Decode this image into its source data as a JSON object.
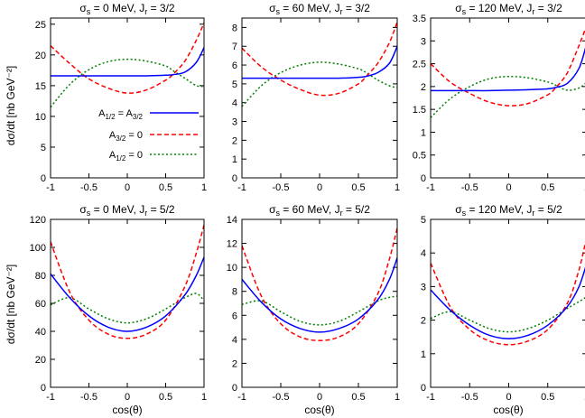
{
  "figure": {
    "ylabel": "dσ/dt [nb GeV⁻²]",
    "xlabel": "cos(θ)"
  },
  "legend": {
    "placement": "top-left panel, lower left",
    "entries": [
      "A1/2 = A3/2",
      "A3/2 = 0",
      "A1/2 = 0"
    ]
  },
  "colors": {
    "A1/2 = A3/2": "#0000ff",
    "A3/2 = 0": "#ff0000",
    "A1/2 = 0": "#008000"
  },
  "chart_data": [
    {
      "type": "line",
      "title": "σs = 0 MeV, Jr = 3/2",
      "xlim": [
        -1,
        1
      ],
      "ylim": [
        0,
        26
      ],
      "yticks": [
        0,
        5,
        10,
        15,
        20,
        25
      ],
      "x": [
        -1,
        -0.75,
        -0.5,
        -0.25,
        0,
        0.25,
        0.5,
        0.6,
        0.75,
        0.9,
        1
      ],
      "series": [
        {
          "name": "A1/2 = A3/2",
          "values": [
            16.6,
            16.6,
            16.6,
            16.6,
            16.6,
            16.6,
            16.7,
            16.8,
            17.2,
            18.8,
            21.2
          ]
        },
        {
          "name": "A3/2 = 0",
          "values": [
            21.5,
            18.6,
            16.1,
            14.6,
            13.8,
            14.3,
            15.9,
            16.9,
            19.0,
            22.4,
            25.2
          ]
        },
        {
          "name": "A1/2 = 0",
          "values": [
            11.5,
            15.2,
            17.6,
            18.9,
            19.3,
            19.0,
            18.2,
            17.4,
            16.2,
            15.0,
            14.9
          ]
        }
      ]
    },
    {
      "type": "line",
      "title": "σs = 60 MeV, Jr = 3/2",
      "xlim": [
        -1,
        1
      ],
      "ylim": [
        0,
        8.5
      ],
      "yticks": [
        0,
        1,
        2,
        3,
        4,
        5,
        6,
        7,
        8
      ],
      "x": [
        -1,
        -0.75,
        -0.5,
        -0.25,
        0,
        0.25,
        0.5,
        0.6,
        0.75,
        0.9,
        1
      ],
      "series": [
        {
          "name": "A1/2 = A3/2",
          "values": [
            5.3,
            5.3,
            5.3,
            5.3,
            5.3,
            5.3,
            5.35,
            5.4,
            5.6,
            6.1,
            7.0
          ]
        },
        {
          "name": "A3/2 = 0",
          "values": [
            6.9,
            5.9,
            5.2,
            4.7,
            4.4,
            4.5,
            5.0,
            5.4,
            6.1,
            7.2,
            8.3
          ]
        },
        {
          "name": "A1/2 = 0",
          "values": [
            3.8,
            4.9,
            5.6,
            6.0,
            6.15,
            6.05,
            5.8,
            5.6,
            5.2,
            4.9,
            4.8
          ]
        }
      ]
    },
    {
      "type": "line",
      "title": "σs = 120 MeV, Jr = 3/2",
      "xlim": [
        -1,
        1
      ],
      "ylim": [
        0,
        3.5
      ],
      "yticks": [
        0,
        0.5,
        1,
        1.5,
        2,
        2.5,
        3,
        3.5
      ],
      "x": [
        -1,
        -0.75,
        -0.5,
        -0.25,
        0,
        0.25,
        0.5,
        0.6,
        0.75,
        0.9,
        1
      ],
      "series": [
        {
          "name": "A1/2 = A3/2",
          "values": [
            1.91,
            1.91,
            1.91,
            1.91,
            1.92,
            1.93,
            1.95,
            1.98,
            2.07,
            2.4,
            2.95
          ]
        },
        {
          "name": "A3/2 = 0",
          "values": [
            2.5,
            2.1,
            1.85,
            1.66,
            1.58,
            1.63,
            1.82,
            1.97,
            2.3,
            2.9,
            3.35
          ]
        },
        {
          "name": "A1/2 = 0",
          "values": [
            1.32,
            1.73,
            2.0,
            2.17,
            2.22,
            2.19,
            2.1,
            2.03,
            1.92,
            1.97,
            2.1
          ]
        }
      ]
    },
    {
      "type": "line",
      "title": "σs = 0 MeV, Jr = 5/2",
      "xlim": [
        -1,
        1
      ],
      "ylim": [
        0,
        120
      ],
      "yticks": [
        0,
        20,
        40,
        60,
        80,
        100,
        120
      ],
      "x": [
        -1,
        -0.75,
        -0.5,
        -0.25,
        0,
        0.25,
        0.5,
        0.75,
        0.9,
        1
      ],
      "series": [
        {
          "name": "A1/2 = A3/2",
          "values": [
            81,
            64,
            51,
            43,
            40,
            43,
            51,
            66,
            80,
            93
          ]
        },
        {
          "name": "A3/2 = 0",
          "values": [
            104,
            68,
            48,
            38,
            35,
            38,
            48,
            72,
            96,
            116
          ]
        },
        {
          "name": "A1/2 = 0",
          "values": [
            59,
            64,
            56,
            49,
            46,
            49,
            56,
            64,
            67,
            62
          ]
        }
      ]
    },
    {
      "type": "line",
      "title": "σs = 60 MeV, Jr = 5/2",
      "xlim": [
        -1,
        1
      ],
      "ylim": [
        0,
        14
      ],
      "yticks": [
        0,
        2,
        4,
        6,
        8,
        10,
        12,
        14
      ],
      "x": [
        -1,
        -0.75,
        -0.5,
        -0.25,
        0,
        0.25,
        0.5,
        0.75,
        0.9,
        1
      ],
      "series": [
        {
          "name": "A1/2 = A3/2",
          "values": [
            9.0,
            7.1,
            5.7,
            4.9,
            4.6,
            4.9,
            5.7,
            7.3,
            9.0,
            10.8
          ]
        },
        {
          "name": "A3/2 = 0",
          "values": [
            11.8,
            7.6,
            5.3,
            4.2,
            3.9,
            4.2,
            5.3,
            7.8,
            10.7,
            13.3
          ]
        },
        {
          "name": "A1/2 = 0",
          "values": [
            6.9,
            7.2,
            6.3,
            5.5,
            5.2,
            5.5,
            6.3,
            7.2,
            7.5,
            7.6
          ]
        }
      ]
    },
    {
      "type": "line",
      "title": "σs = 120 MeV, Jr = 5/2",
      "xlim": [
        -1,
        1
      ],
      "ylim": [
        0,
        5
      ],
      "yticks": [
        0,
        1,
        2,
        3,
        4,
        5
      ],
      "x": [
        -1,
        -0.75,
        -0.5,
        -0.25,
        0,
        0.25,
        0.5,
        0.75,
        0.9,
        1
      ],
      "series": [
        {
          "name": "A1/2 = A3/2",
          "values": [
            2.9,
            2.3,
            1.85,
            1.55,
            1.45,
            1.55,
            1.85,
            2.4,
            3.0,
            3.7
          ]
        },
        {
          "name": "A3/2 = 0",
          "values": [
            3.7,
            2.4,
            1.72,
            1.38,
            1.27,
            1.38,
            1.72,
            2.5,
            3.5,
            4.5
          ]
        },
        {
          "name": "A1/2 = 0",
          "values": [
            2.05,
            2.25,
            2.0,
            1.75,
            1.65,
            1.75,
            2.0,
            2.35,
            2.55,
            2.7
          ]
        }
      ]
    }
  ]
}
